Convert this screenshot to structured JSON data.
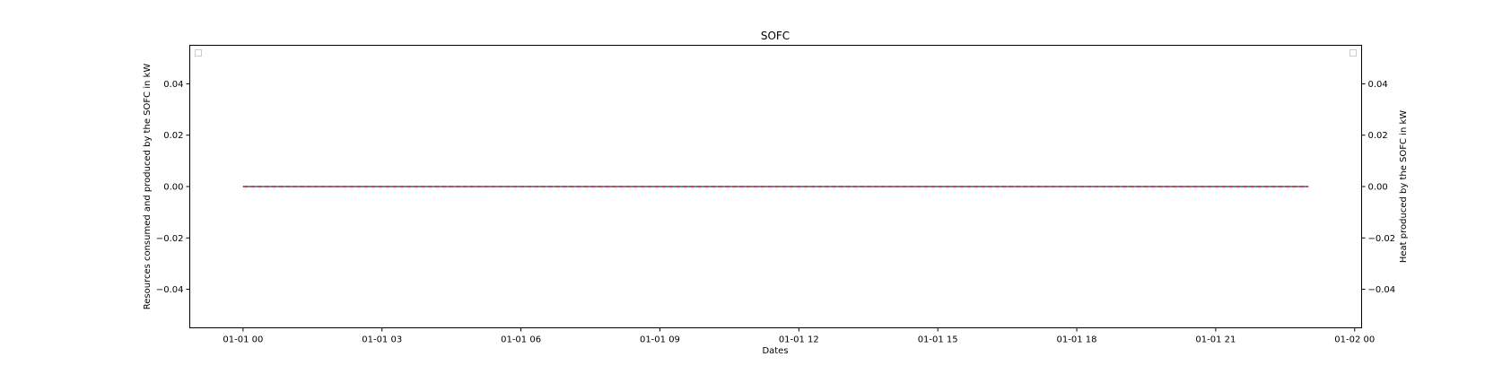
{
  "chart_data": {
    "type": "line",
    "title": "SOFC",
    "xlabel": "Dates",
    "ylabel_left": "Resources consumed and produced by the SOFC in kW",
    "ylabel_right": "Heat produced by the SOFC in kW",
    "x_tick_labels": [
      "01-01 00",
      "01-01 03",
      "01-01 06",
      "01-01 09",
      "01-01 12",
      "01-01 15",
      "01-01 18",
      "01-01 21",
      "01-02 00"
    ],
    "x_ticks_hours": [
      0,
      3,
      6,
      9,
      12,
      15,
      18,
      21,
      24
    ],
    "xlim_hours": [
      -1.15,
      24.15
    ],
    "y_ticks": [
      0.04,
      0.02,
      0.0,
      -0.02,
      -0.04
    ],
    "y_tick_labels": [
      "0.04",
      "0.02",
      "0.00",
      "−0.02",
      "−0.04"
    ],
    "ylim": [
      -0.055,
      0.055
    ],
    "grid": false,
    "legend_left": "empty box, top-left",
    "legend_right": "empty box, top-right",
    "series": [
      {
        "axis": "left",
        "color": "#1f77b4",
        "style": "solid",
        "x_hours": [
          0,
          1,
          2,
          3,
          4,
          5,
          6,
          7,
          8,
          9,
          10,
          11,
          12,
          13,
          14,
          15,
          16,
          17,
          18,
          19,
          20,
          21,
          22,
          23
        ],
        "values": [
          0,
          0,
          0,
          0,
          0,
          0,
          0,
          0,
          0,
          0,
          0,
          0,
          0,
          0,
          0,
          0,
          0,
          0,
          0,
          0,
          0,
          0,
          0,
          0
        ]
      },
      {
        "axis": "right",
        "color": "#d62728",
        "style": "dashed",
        "x_hours": [
          0,
          1,
          2,
          3,
          4,
          5,
          6,
          7,
          8,
          9,
          10,
          11,
          12,
          13,
          14,
          15,
          16,
          17,
          18,
          19,
          20,
          21,
          22,
          23
        ],
        "values": [
          0,
          0,
          0,
          0,
          0,
          0,
          0,
          0,
          0,
          0,
          0,
          0,
          0,
          0,
          0,
          0,
          0,
          0,
          0,
          0,
          0,
          0,
          0,
          0
        ]
      }
    ]
  }
}
